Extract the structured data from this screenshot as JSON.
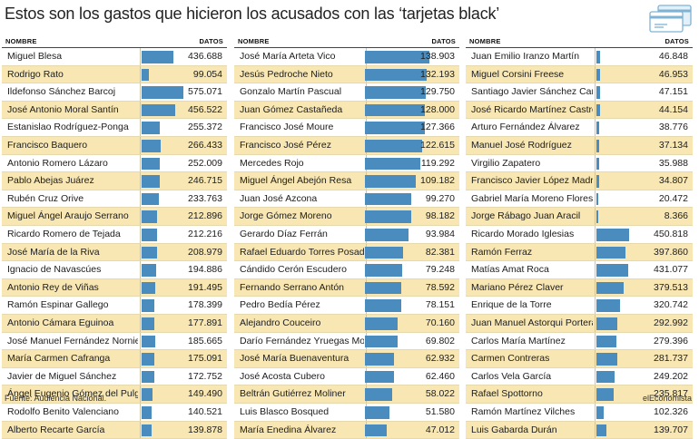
{
  "title": "Estos son los gastos que hicieron los acusados con las ‘tarjetas black’",
  "icon": "credit-card-icon",
  "colors": {
    "bar": "#4a8cbe",
    "row_alt": "#f8e7b2",
    "text": "#1c1c1c"
  },
  "headers": {
    "name": "NOMBRE",
    "value": "DATOS"
  },
  "source": "Fuente: Audiencia Nacional.",
  "brand": "elEconomista",
  "chart_data": {
    "type": "bar",
    "orientation": "horizontal",
    "title": "Estos son los gastos que hicieron los acusados con las ‘tarjetas black’",
    "xlabel": "DATOS",
    "ylabel": "NOMBRE",
    "xlim": [
      0,
      600000
    ],
    "grid": false,
    "columns": [
      {
        "rows": [
          {
            "name": "Miguel Blesa",
            "value": 436688,
            "label": "436.688"
          },
          {
            "name": "Rodrigo Rato",
            "value": 99054,
            "label": "99.054"
          },
          {
            "name": "Ildefonso Sánchez Barcoj",
            "value": 575071,
            "label": "575.071"
          },
          {
            "name": "José Antonio Moral Santín",
            "value": 456522,
            "label": "456.522"
          },
          {
            "name": "Estanislao Rodríguez-Ponga",
            "value": 255372,
            "label": "255.372"
          },
          {
            "name": "Francisco Baquero",
            "value": 266433,
            "label": "266.433"
          },
          {
            "name": "Antonio Romero Lázaro",
            "value": 252009,
            "label": "252.009"
          },
          {
            "name": "Pablo Abejas Juárez",
            "value": 246715,
            "label": "246.715"
          },
          {
            "name": "Rubén Cruz Orive",
            "value": 233763,
            "label": "233.763"
          },
          {
            "name": "Miguel Ángel Araujo Serrano",
            "value": 212896,
            "label": "212.896"
          },
          {
            "name": "Ricardo Romero de Tejada",
            "value": 212216,
            "label": "212.216"
          },
          {
            "name": "José María de la Riva",
            "value": 208979,
            "label": "208.979"
          },
          {
            "name": "Ignacio de Navascúes",
            "value": 194886,
            "label": "194.886"
          },
          {
            "name": "Antonio Rey de Viñas",
            "value": 191495,
            "label": "191.495"
          },
          {
            "name": "Ramón Espinar Gallego",
            "value": 178399,
            "label": "178.399"
          },
          {
            "name": "Antonio Cámara Eguinoa",
            "value": 177891,
            "label": "177.891"
          },
          {
            "name": "José Manuel Fernández Norniella",
            "value": 185665,
            "label": "185.665"
          },
          {
            "name": "María Carmen Cafranga",
            "value": 175091,
            "label": "175.091"
          },
          {
            "name": "Javier de Miguel Sánchez",
            "value": 172752,
            "label": "172.752"
          },
          {
            "name": "Ángel Eugenio Gómez del Pulgar",
            "value": 149490,
            "label": "149.490"
          },
          {
            "name": "Rodolfo Benito Valenciano",
            "value": 140521,
            "label": "140.521"
          },
          {
            "name": "Alberto Recarte García",
            "value": 139878,
            "label": "139.878"
          }
        ]
      },
      {
        "rows": [
          {
            "name": "José María Arteta Vico",
            "value": 138903,
            "label": "138.903"
          },
          {
            "name": "Jesús Pedroche Nieto",
            "value": 132193,
            "label": "132.193"
          },
          {
            "name": "Gonzalo Martín Pascual",
            "value": 129750,
            "label": "129.750"
          },
          {
            "name": "Juan Gómez Castañeda",
            "value": 128000,
            "label": "128.000"
          },
          {
            "name": "Francisco José Moure",
            "value": 127366,
            "label": "127.366"
          },
          {
            "name": "Francisco José Pérez",
            "value": 122615,
            "label": "122.615"
          },
          {
            "name": "Mercedes Rojo",
            "value": 119292,
            "label": "119.292"
          },
          {
            "name": "Miguel Ángel Abejón Resa",
            "value": 109182,
            "label": "109.182"
          },
          {
            "name": "Juan José Azcona",
            "value": 99270,
            "label": "99.270"
          },
          {
            "name": "Jorge Gómez Moreno",
            "value": 98182,
            "label": "98.182"
          },
          {
            "name": "Gerardo Díaz Ferrán",
            "value": 93984,
            "label": "93.984"
          },
          {
            "name": "Rafael Eduardo Torres Posada",
            "value": 82381,
            "label": "82.381"
          },
          {
            "name": "Cándido Cerón Escudero",
            "value": 79248,
            "label": "79.248"
          },
          {
            "name": "Fernando Serrano Antón",
            "value": 78592,
            "label": "78.592"
          },
          {
            "name": "Pedro Bedía Pérez",
            "value": 78151,
            "label": "78.151"
          },
          {
            "name": "Alejandro Couceiro",
            "value": 70160,
            "label": "70.160"
          },
          {
            "name": "Darío Fernández Yruegas Moro",
            "value": 69802,
            "label": "69.802"
          },
          {
            "name": "José María Buenaventura",
            "value": 62932,
            "label": "62.932"
          },
          {
            "name": "José Acosta Cubero",
            "value": 62460,
            "label": "62.460"
          },
          {
            "name": "Beltrán Gutiérrez Moliner",
            "value": 58022,
            "label": "58.022"
          },
          {
            "name": "Luis Blasco Bosqued",
            "value": 51580,
            "label": "51.580"
          },
          {
            "name": "María Enedina Álvarez",
            "value": 47012,
            "label": "47.012"
          }
        ]
      },
      {
        "rows": [
          {
            "name": "Juan Emilio Iranzo Martín",
            "value": 46848,
            "label": "46.848"
          },
          {
            "name": "Miguel Corsini Freese",
            "value": 46953,
            "label": "46.953"
          },
          {
            "name": "Santiago Javier Sánchez Carlos",
            "value": 47151,
            "label": "47.151"
          },
          {
            "name": "José Ricardo Martínez Castro",
            "value": 44154,
            "label": "44.154"
          },
          {
            "name": "Arturo Fernández Álvarez",
            "value": 38776,
            "label": "38.776"
          },
          {
            "name": "Manuel José Rodríguez",
            "value": 37134,
            "label": "37.134"
          },
          {
            "name": "Virgilio Zapatero",
            "value": 35988,
            "label": "35.988"
          },
          {
            "name": "Francisco Javier López Madrid",
            "value": 34807,
            "label": "34.807"
          },
          {
            "name": "Gabriel María Moreno Flores",
            "value": 20472,
            "label": "20.472"
          },
          {
            "name": "Jorge Rábago Juan Aracil",
            "value": 8366,
            "label": "8.366"
          },
          {
            "name": "Ricardo Morado Iglesias",
            "value": 450818,
            "label": "450.818"
          },
          {
            "name": "Ramón Ferraz",
            "value": 397860,
            "label": "397.860"
          },
          {
            "name": "Matías Amat Roca",
            "value": 431077,
            "label": "431.077"
          },
          {
            "name": "Mariano Pérez Claver",
            "value": 379513,
            "label": "379.513"
          },
          {
            "name": "Enrique de la Torre",
            "value": 320742,
            "label": "320.742"
          },
          {
            "name": "Juan Manuel Astorqui Portera",
            "value": 292992,
            "label": "292.992"
          },
          {
            "name": "Carlos María Martínez",
            "value": 279396,
            "label": "279.396"
          },
          {
            "name": "Carmen Contreras",
            "value": 281737,
            "label": "281.737"
          },
          {
            "name": "Carlos Vela García",
            "value": 249202,
            "label": "249.202"
          },
          {
            "name": "Rafael Spottorno",
            "value": 235817,
            "label": "235.817"
          },
          {
            "name": "Ramón Martínez Vilches",
            "value": 102326,
            "label": "102.326"
          },
          {
            "name": "Luis Gabarda Durán",
            "value": 139707,
            "label": "139.707"
          }
        ]
      }
    ]
  }
}
